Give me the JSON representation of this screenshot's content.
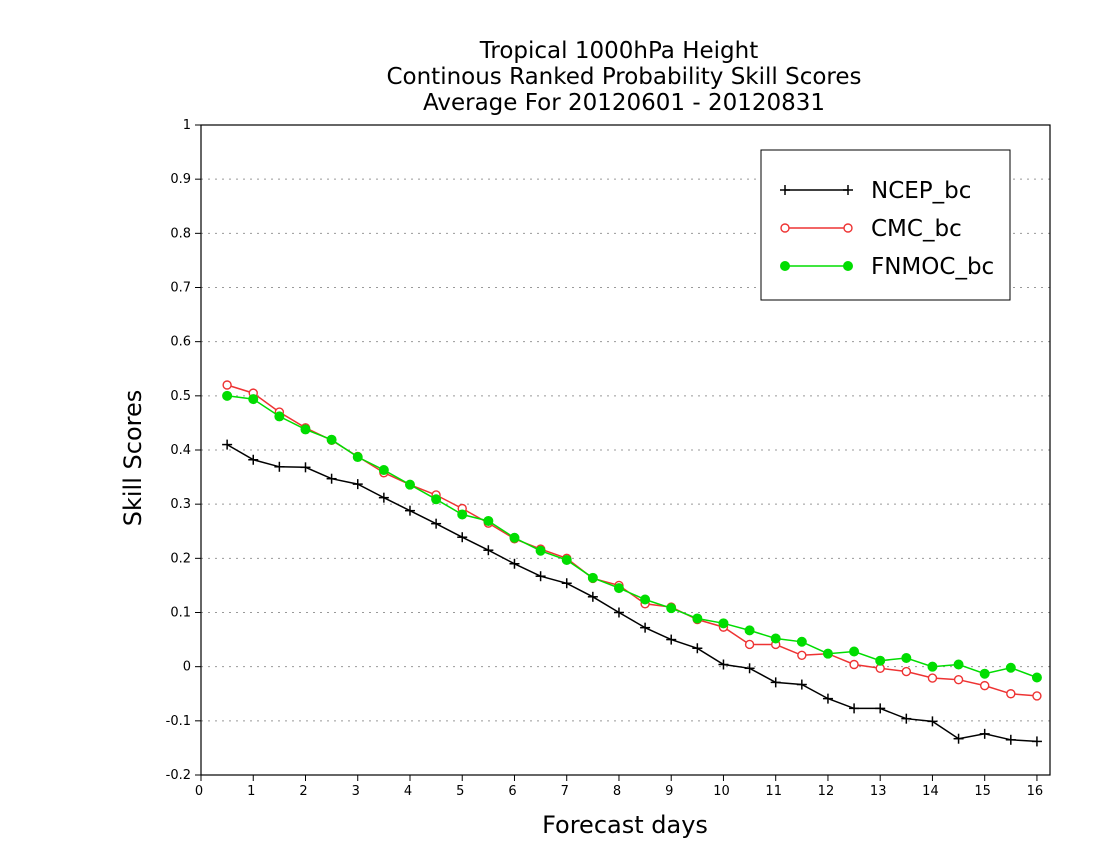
{
  "chart_data": {
    "type": "line",
    "title_lines": [
      "Tropical 1000hPa Height",
      "Continous Ranked Probability Skill Scores",
      "Average For 20120601 - 20120831"
    ],
    "xlabel": "Forecast days",
    "ylabel": "Skill Scores",
    "xlim": [
      0,
      16.25
    ],
    "ylim": [
      -0.2,
      1
    ],
    "xticks": [
      0,
      1,
      2,
      3,
      4,
      5,
      6,
      7,
      8,
      9,
      10,
      11,
      12,
      13,
      14,
      15,
      16
    ],
    "yticks": [
      -0.2,
      -0.1,
      0,
      0.1,
      0.2,
      0.3,
      0.4,
      0.5,
      0.6,
      0.7,
      0.8,
      0.9,
      1
    ],
    "ytick_labels": [
      "-0.2",
      "-0.1",
      "0",
      "0.1",
      "0.2",
      "0.3",
      "0.4",
      "0.5",
      "0.6",
      "0.7",
      "0.8",
      "0.9",
      "1"
    ],
    "grid": "horizontal dotted",
    "legend_position": "top-right",
    "x": [
      0.5,
      1,
      1.5,
      2,
      2.5,
      3,
      3.5,
      4,
      4.5,
      5,
      5.5,
      6,
      6.5,
      7,
      7.5,
      8,
      8.5,
      9,
      9.5,
      10,
      10.5,
      11,
      11.5,
      12,
      12.5,
      13,
      13.5,
      14,
      14.5,
      15,
      15.5,
      16
    ],
    "series": [
      {
        "name": "NCEP_bc",
        "color": "#000000",
        "marker": "plus",
        "values": [
          0.41,
          0.382,
          0.369,
          0.368,
          0.347,
          0.337,
          0.312,
          0.288,
          0.264,
          0.239,
          0.215,
          0.19,
          0.167,
          0.154,
          0.129,
          0.1,
          0.072,
          0.05,
          0.034,
          0.004,
          -0.003,
          -0.029,
          -0.033,
          -0.059,
          -0.077,
          -0.077,
          -0.096,
          -0.101,
          -0.133,
          -0.124,
          -0.135,
          -0.138
        ]
      },
      {
        "name": "CMC_bc",
        "color": "#ee3333",
        "marker": "open-circle",
        "values": [
          0.52,
          0.505,
          0.47,
          0.441,
          0.418,
          0.388,
          0.358,
          0.336,
          0.317,
          0.292,
          0.265,
          0.236,
          0.217,
          0.2,
          0.163,
          0.15,
          0.116,
          0.11,
          0.087,
          0.073,
          0.041,
          0.041,
          0.021,
          0.024,
          0.004,
          -0.003,
          -0.009,
          -0.021,
          -0.024,
          -0.035,
          -0.05,
          -0.054
        ]
      },
      {
        "name": "FNMOC_bc",
        "color": "#00dd00",
        "marker": "filled-circle",
        "values": [
          0.5,
          0.494,
          0.462,
          0.438,
          0.419,
          0.387,
          0.363,
          0.336,
          0.309,
          0.281,
          0.269,
          0.238,
          0.214,
          0.197,
          0.164,
          0.145,
          0.124,
          0.108,
          0.089,
          0.08,
          0.067,
          0.052,
          0.046,
          0.024,
          0.028,
          0.011,
          0.016,
          0.0,
          0.004,
          -0.013,
          -0.002,
          -0.02
        ]
      }
    ]
  }
}
